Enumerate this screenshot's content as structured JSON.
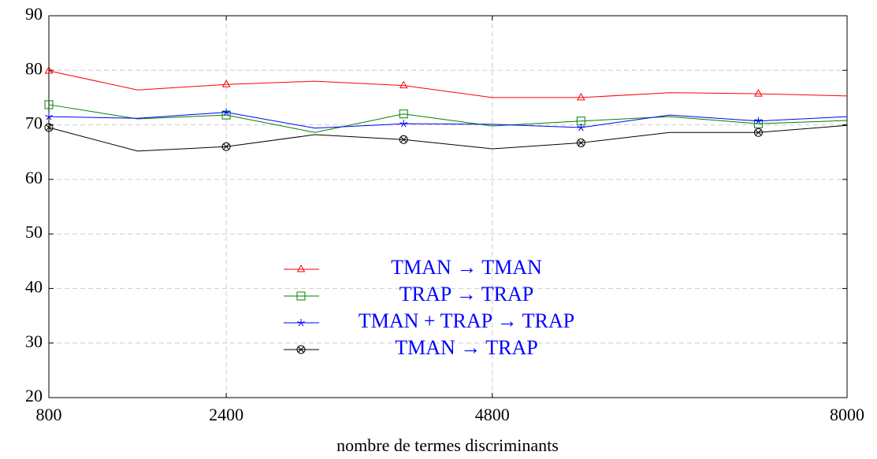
{
  "chart_data": {
    "type": "line",
    "xlabel": "nombre de termes discriminants",
    "x": [
      800,
      1600,
      2400,
      3200,
      4000,
      4800,
      5600,
      6400,
      7200,
      8000
    ],
    "series": [
      {
        "name": "TMAN → TMAN",
        "color": "#ff0000",
        "marker": "triangle",
        "values": [
          79.9,
          76.4,
          77.4,
          78.0,
          77.2,
          75.0,
          75.0,
          75.9,
          75.7,
          75.3
        ]
      },
      {
        "name": "TRAP → TRAP",
        "color": "#008000",
        "marker": "square",
        "values": [
          73.7,
          71.1,
          71.8,
          68.6,
          72.0,
          69.8,
          70.7,
          71.5,
          70.2,
          70.8
        ]
      },
      {
        "name": "TMAN + TRAP → TRAP",
        "color": "#0000ff",
        "marker": "star",
        "values": [
          71.5,
          71.2,
          72.3,
          69.4,
          70.2,
          70.1,
          69.5,
          71.8,
          70.7,
          71.5
        ]
      },
      {
        "name": "TMAN → TRAP",
        "color": "#000000",
        "marker": "otimes",
        "values": [
          69.5,
          65.2,
          66.0,
          68.2,
          67.3,
          65.6,
          66.7,
          68.6,
          68.6,
          69.9
        ]
      }
    ],
    "mark_every": 2,
    "xlim": [
      800,
      8000
    ],
    "xticks": [
      800,
      2400,
      4800,
      8000
    ],
    "ylim": [
      20,
      90
    ],
    "yticks": [
      20,
      30,
      40,
      50,
      60,
      70,
      80,
      90
    ],
    "grid": true,
    "legend": "bottom",
    "legend_text_color": "#0000ff"
  }
}
